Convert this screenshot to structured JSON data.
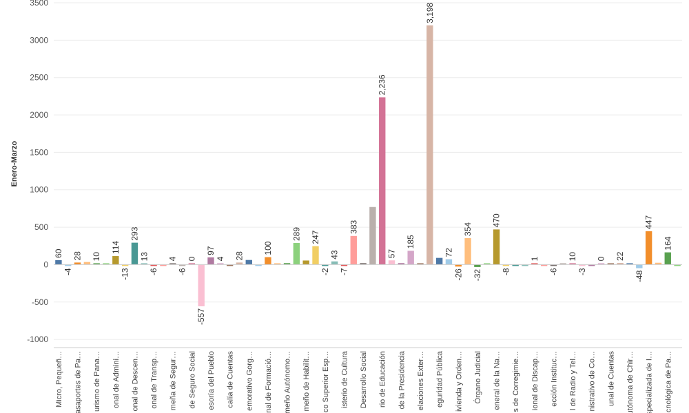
{
  "chart_data": {
    "type": "bar",
    "ylabel": "Enero-Marzo",
    "ylim": [
      -1100,
      3500
    ],
    "yticks": [
      -1000,
      -500,
      0,
      500,
      1000,
      1500,
      2000,
      2500,
      3000,
      3500
    ],
    "ytick_labels": [
      "-1000",
      "-500",
      "0",
      "500",
      "1000",
      "1500",
      "2000",
      "2500",
      "3000",
      "3500"
    ],
    "categories": [
      "Micro, Pequeñ…",
      "",
      "asaportes de Pa…",
      "",
      "urismo de Pana…",
      "",
      "onal de Admini…",
      "",
      "onal de Descen…",
      "",
      "onal de Transp…",
      "",
      "meña de Segur…",
      "",
      "de Seguro Social",
      "",
      "esoría del Pueblo",
      "",
      "calía de Cuentas",
      "",
      "emorativo Gorg…",
      "",
      "nal de Formació…",
      "",
      "meño Autónomo…",
      "",
      "meño de Habilit…",
      "",
      "co Superior Esp…",
      "",
      "isterio de Cultura",
      "",
      "Desarrollo Social",
      "",
      "rio de Educación",
      "",
      "de la Presidencia",
      "",
      "elaciones Exter…",
      "",
      "eguridad Pública",
      "",
      "ivienda y Orden…",
      "",
      "Órgano Judicial",
      "",
      "eneral de la Na…",
      "",
      "s de Corregimie…",
      "",
      "ional de Discap…",
      "",
      "ección Instituc…",
      "",
      "l de Radio y Tel…",
      "",
      "nistrativo de Co…",
      "",
      "unal de Cuentas",
      "",
      "utónoma de Chir…",
      "",
      "specializada de I…",
      "",
      "cnológica de Pa…",
      ""
    ],
    "values": [
      60,
      -4,
      28,
      35,
      10,
      12,
      114,
      -13,
      293,
      13,
      -6,
      -6,
      4,
      -6,
      0,
      -557,
      97,
      4,
      -5,
      28,
      62,
      -3,
      100,
      8,
      20,
      289,
      55,
      247,
      -2,
      43,
      -7,
      383,
      20,
      770,
      2236,
      57,
      20,
      185,
      10,
      3198,
      90,
      72,
      -26,
      354,
      -32,
      3,
      470,
      -8,
      -5,
      -6,
      1,
      -6,
      -6,
      2,
      10,
      -3,
      -3,
      0,
      3,
      22,
      8,
      -48,
      447,
      25,
      164,
      -8
    ],
    "labels": [
      "60",
      "-4",
      "28",
      "",
      "10",
      "",
      "114",
      "-13",
      "293",
      "13",
      "-6",
      "",
      "4",
      "-6",
      "0",
      "-557",
      "97",
      "4",
      "",
      "28",
      "",
      "",
      "100",
      "",
      "",
      "289",
      "",
      "247",
      "-2",
      "43",
      "-7",
      "383",
      "",
      "",
      "2,236",
      "57",
      "",
      "185",
      "",
      "3,198",
      "",
      "72",
      "-26",
      "354",
      "-32",
      "",
      "470",
      "-8",
      "",
      "",
      "1",
      "",
      "-6",
      "",
      "10",
      "-3",
      "",
      "0",
      "",
      "22",
      "",
      "-48",
      "447",
      "",
      "164",
      ""
    ],
    "colors": [
      "#4e79a7",
      "#a0cbe8",
      "#f28e2b",
      "#ffbe7d",
      "#59a14f",
      "#8cd17d",
      "#b6992d",
      "#f1ce63",
      "#499894",
      "#86bcb6",
      "#e15759",
      "#ff9d9a",
      "#79706e",
      "#bab0ac",
      "#d37295",
      "#fabfd2",
      "#b07aa1",
      "#d4a6c8",
      "#9d7660",
      "#d7b5a6",
      "#4e79a7",
      "#a0cbe8",
      "#f28e2b",
      "#ffbe7d",
      "#59a14f",
      "#8cd17d",
      "#b6992d",
      "#f1ce63",
      "#499894",
      "#86bcb6",
      "#e15759",
      "#ff9d9a",
      "#79706e",
      "#bab0ac",
      "#d37295",
      "#fabfd2",
      "#b07aa1",
      "#d4a6c8",
      "#9d7660",
      "#d7b5a6",
      "#4e79a7",
      "#a0cbe8",
      "#f28e2b",
      "#ffbe7d",
      "#59a14f",
      "#8cd17d",
      "#b6992d",
      "#f1ce63",
      "#499894",
      "#86bcb6",
      "#e15759",
      "#ff9d9a",
      "#79706e",
      "#bab0ac",
      "#d37295",
      "#fabfd2",
      "#b07aa1",
      "#d4a6c8",
      "#9d7660",
      "#d7b5a6",
      "#4e79a7",
      "#a0cbe8",
      "#f28e2b",
      "#ffbe7d",
      "#59a14f",
      "#8cd17d"
    ],
    "grid": true,
    "legend": "none"
  }
}
